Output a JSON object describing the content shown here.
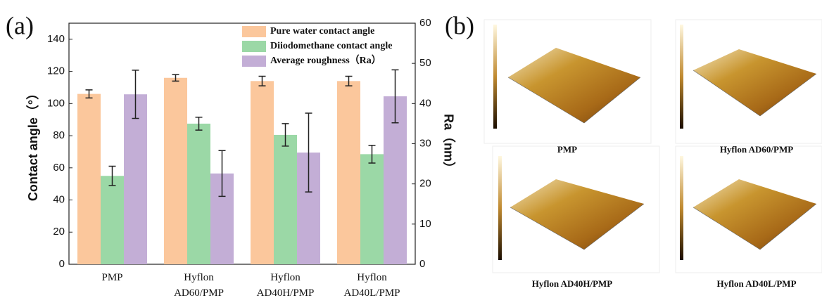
{
  "panel_a": {
    "label": "(a)"
  },
  "panel_b": {
    "label": "(b)",
    "images": [
      "PMP",
      "Hyflon AD60/PMP",
      "Hyflon AD40H/PMP",
      "Hyflon AD40L/PMP"
    ]
  },
  "chart_data": {
    "type": "bar",
    "y_label": "Contact angle（°）",
    "y2_label": "Ra（nm）",
    "categories": [
      [
        "PMP"
      ],
      [
        "Hyflon",
        "AD60/PMP"
      ],
      [
        "Hyflon",
        "AD40H/PMP"
      ],
      [
        "Hyflon",
        "AD40L/PMP"
      ]
    ],
    "ylim": [
      0,
      150
    ],
    "yticks": [
      0,
      20,
      40,
      60,
      80,
      100,
      120,
      140
    ],
    "y2lim": [
      0,
      60
    ],
    "y2ticks": [
      0,
      10,
      20,
      30,
      40,
      50,
      60
    ],
    "legend": "top-right",
    "series": [
      {
        "name": "Pure water contact angle",
        "color": "#fbc79c",
        "values": [
          106,
          116,
          114,
          114
        ],
        "errors": [
          2.5,
          2,
          3,
          3
        ]
      },
      {
        "name": "Diiodomethane contact angle",
        "color": "#9bd8a6",
        "values": [
          55,
          87.5,
          80.5,
          68.5
        ],
        "errors": [
          6,
          4,
          7,
          5.5
        ]
      },
      {
        "name": "Average roughness（Ra）",
        "color": "#c3aed6",
        "axis": "y2",
        "values": [
          42.3,
          22.6,
          27.8,
          41.8
        ],
        "errors": [
          6,
          5.7,
          9.8,
          6.6
        ]
      }
    ]
  }
}
